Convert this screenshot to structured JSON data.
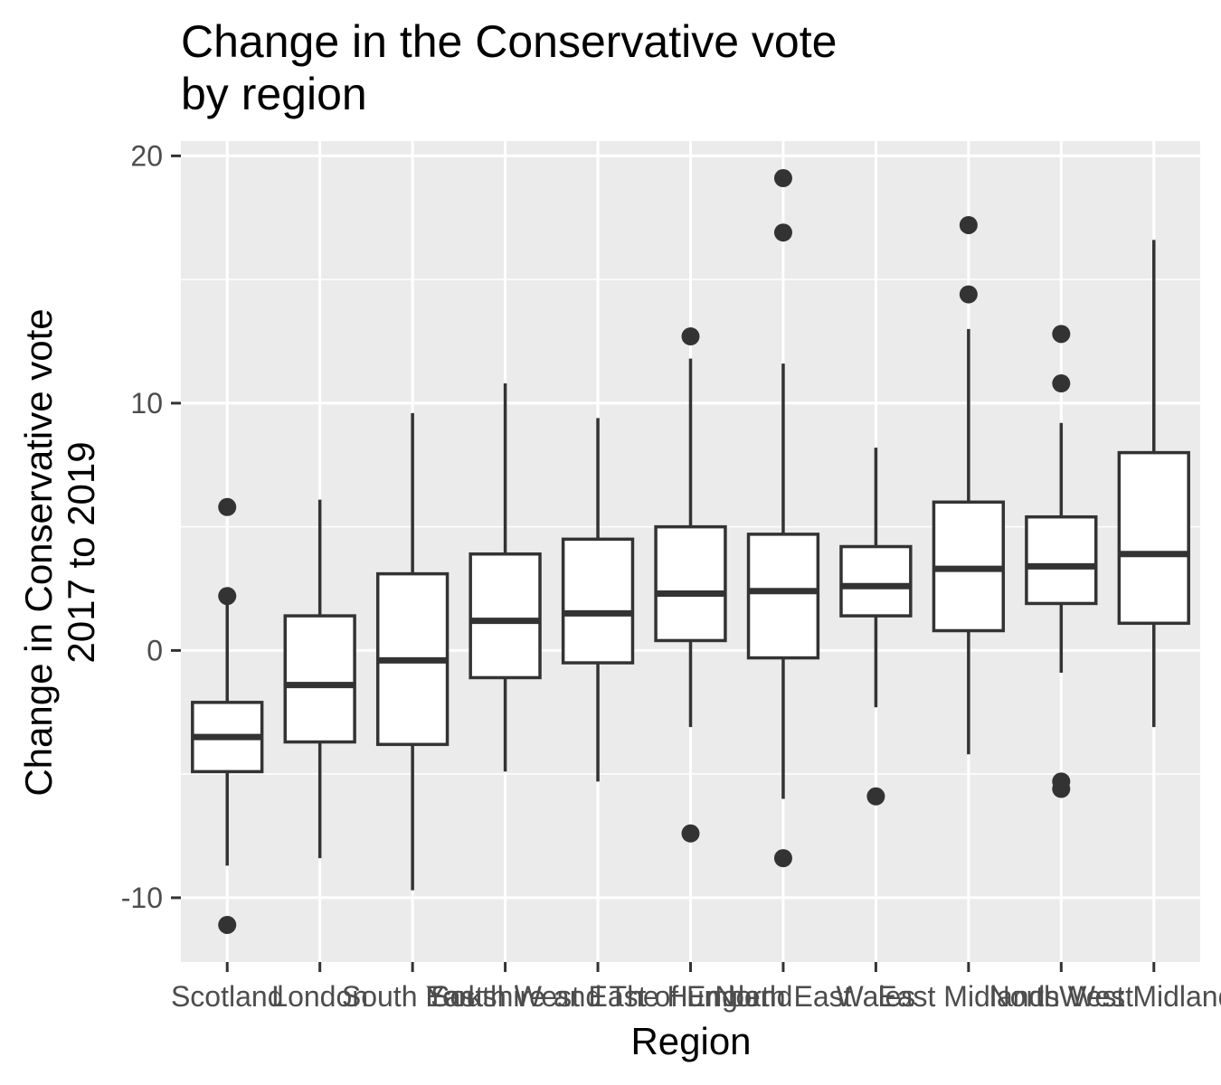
{
  "chart_data": {
    "type": "boxplot",
    "title_lines": [
      "Change in the Conservative vote",
      "by region"
    ],
    "xlabel": "Region",
    "ylabel_lines": [
      "Change in Conservative vote",
      "2017 to 2019"
    ],
    "ylim": [
      -12.6,
      20.6
    ],
    "yticks": [
      -10,
      0,
      10,
      20
    ],
    "grid": true,
    "categories": [
      "Scotland",
      "London",
      "South East",
      "South West",
      "Yorkshire and The Humber",
      "East of England",
      "North East",
      "Wales",
      "East Midlands",
      "North West",
      "West Midlands"
    ],
    "boxes": [
      {
        "category": "Scotland",
        "whisker_low": -8.7,
        "q1": -4.9,
        "median": -3.5,
        "q3": -2.1,
        "whisker_high": 2.1,
        "outliers": [
          5.8,
          2.2,
          -11.1
        ]
      },
      {
        "category": "London",
        "whisker_low": -8.4,
        "q1": -3.7,
        "median": -1.4,
        "q3": 1.4,
        "whisker_high": 6.1,
        "outliers": []
      },
      {
        "category": "South East",
        "whisker_low": -9.7,
        "q1": -3.8,
        "median": -0.4,
        "q3": 3.1,
        "whisker_high": 9.6,
        "outliers": []
      },
      {
        "category": "South West",
        "whisker_low": -4.9,
        "q1": -1.1,
        "median": 1.2,
        "q3": 3.9,
        "whisker_high": 10.8,
        "outliers": []
      },
      {
        "category": "Yorkshire and The Humber",
        "whisker_low": -5.3,
        "q1": -0.5,
        "median": 1.5,
        "q3": 4.5,
        "whisker_high": 9.4,
        "outliers": []
      },
      {
        "category": "East of England",
        "whisker_low": -3.1,
        "q1": 0.4,
        "median": 2.3,
        "q3": 5.0,
        "whisker_high": 11.8,
        "outliers": [
          12.7,
          -7.4
        ]
      },
      {
        "category": "North East",
        "whisker_low": -6.0,
        "q1": -0.3,
        "median": 2.4,
        "q3": 4.7,
        "whisker_high": 11.6,
        "outliers": [
          19.1,
          16.9,
          -8.4
        ]
      },
      {
        "category": "Wales",
        "whisker_low": -2.3,
        "q1": 1.4,
        "median": 2.6,
        "q3": 4.2,
        "whisker_high": 8.2,
        "outliers": [
          -5.9
        ]
      },
      {
        "category": "East Midlands",
        "whisker_low": -4.2,
        "q1": 0.8,
        "median": 3.3,
        "q3": 6.0,
        "whisker_high": 13.0,
        "outliers": [
          17.2,
          14.4
        ]
      },
      {
        "category": "North West",
        "whisker_low": -0.9,
        "q1": 1.9,
        "median": 3.4,
        "q3": 5.4,
        "whisker_high": 9.2,
        "outliers": [
          12.8,
          10.8,
          -5.3,
          -5.6
        ]
      },
      {
        "category": "West Midlands",
        "whisker_low": -3.1,
        "q1": 1.1,
        "median": 3.9,
        "q3": 8.0,
        "whisker_high": 16.6,
        "outliers": []
      }
    ],
    "colors": {
      "panel": "#ebebeb",
      "grid": "#ffffff",
      "box_line": "#333333",
      "box_fill": "#ffffff",
      "tick_mark": "#333333",
      "tick_text": "#4d4d4d",
      "title_text": "#000000"
    }
  }
}
